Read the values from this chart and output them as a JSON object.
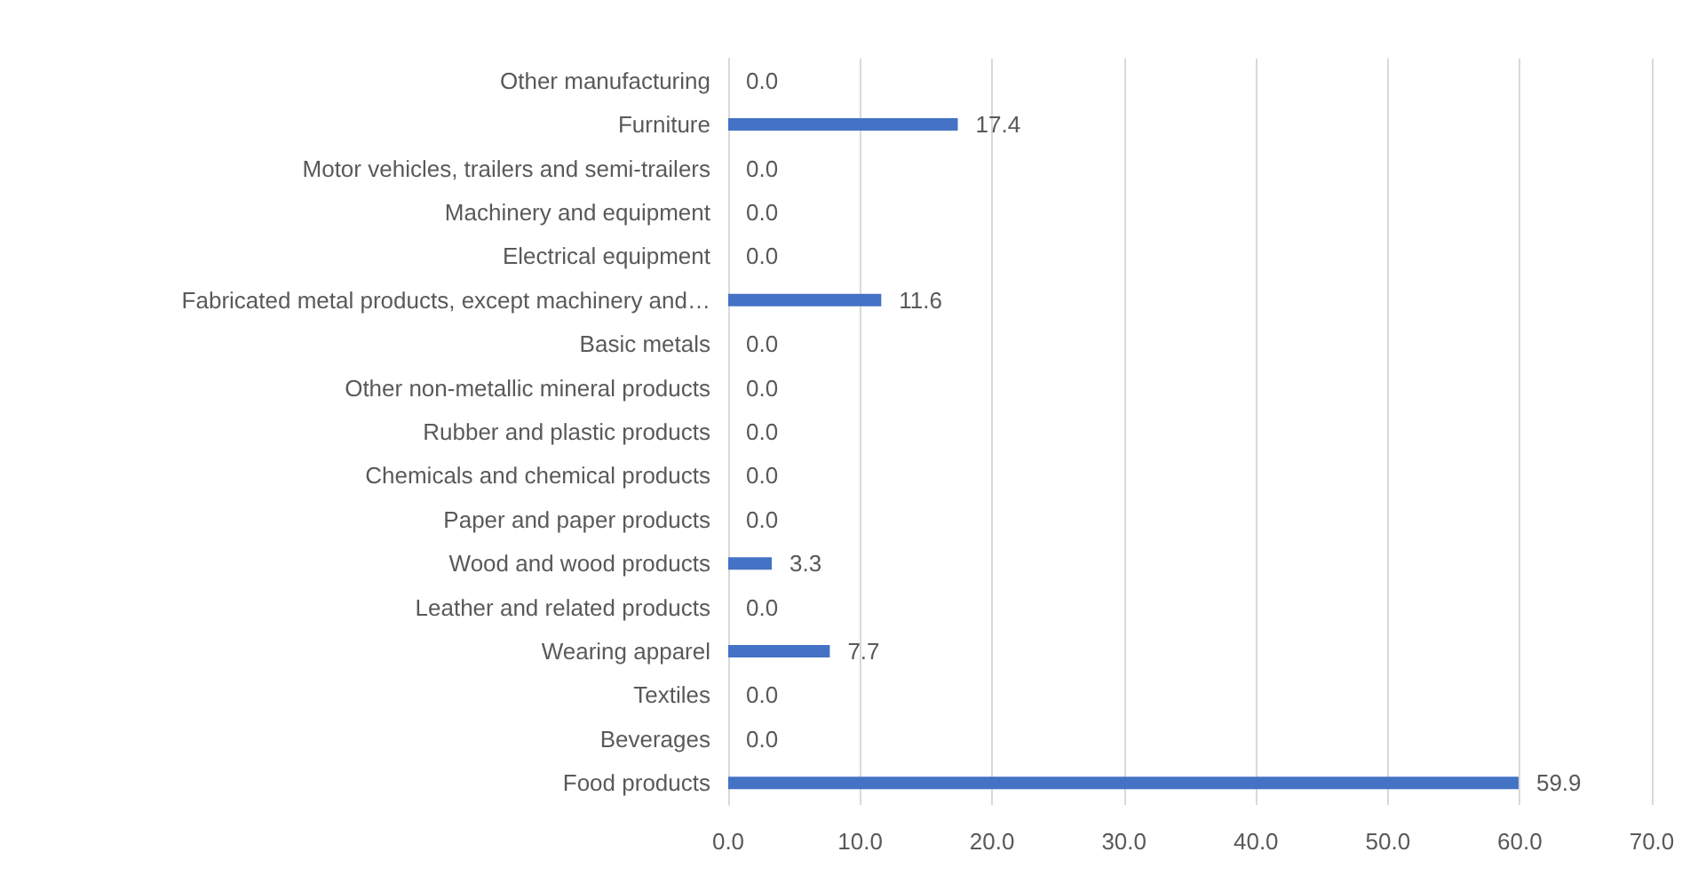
{
  "chart_data": {
    "type": "bar",
    "orientation": "horizontal",
    "categories": [
      "Other manufacturing",
      "Furniture",
      "Motor vehicles, trailers and semi-trailers",
      "Machinery and equipment",
      "Electrical equipment",
      "Fabricated metal products, except machinery and…",
      "Basic metals",
      "Other non-metallic mineral products",
      "Rubber and plastic products",
      "Chemicals and chemical products",
      "Paper and paper products",
      "Wood and wood products",
      "Leather and related products",
      "Wearing apparel",
      "Textiles",
      "Beverages",
      "Food products"
    ],
    "values": [
      0,
      17.4,
      0,
      0,
      0,
      11.6,
      0,
      0,
      0,
      0,
      0,
      3.3,
      0,
      7.7,
      0,
      0,
      59.9
    ],
    "value_labels": [
      "0.0",
      "17.4",
      "0.0",
      "0.0",
      "0.0",
      "11.6",
      "0.0",
      "0.0",
      "0.0",
      "0.0",
      "0.0",
      "3.3",
      "0.0",
      "7.7",
      "0.0",
      "0.0",
      "59.9"
    ],
    "color": "#4472c4",
    "xlim": [
      0,
      70
    ],
    "xticks": [
      {
        "value": 0,
        "label": "0.0"
      },
      {
        "value": 10,
        "label": "10.0"
      },
      {
        "value": 20,
        "label": "20.0"
      },
      {
        "value": 30,
        "label": "30.0"
      },
      {
        "value": 40,
        "label": "40.0"
      },
      {
        "value": 50,
        "label": "50.0"
      },
      {
        "value": 60,
        "label": "60.0"
      },
      {
        "value": 70,
        "label": "70.0"
      }
    ],
    "grid": "x"
  }
}
